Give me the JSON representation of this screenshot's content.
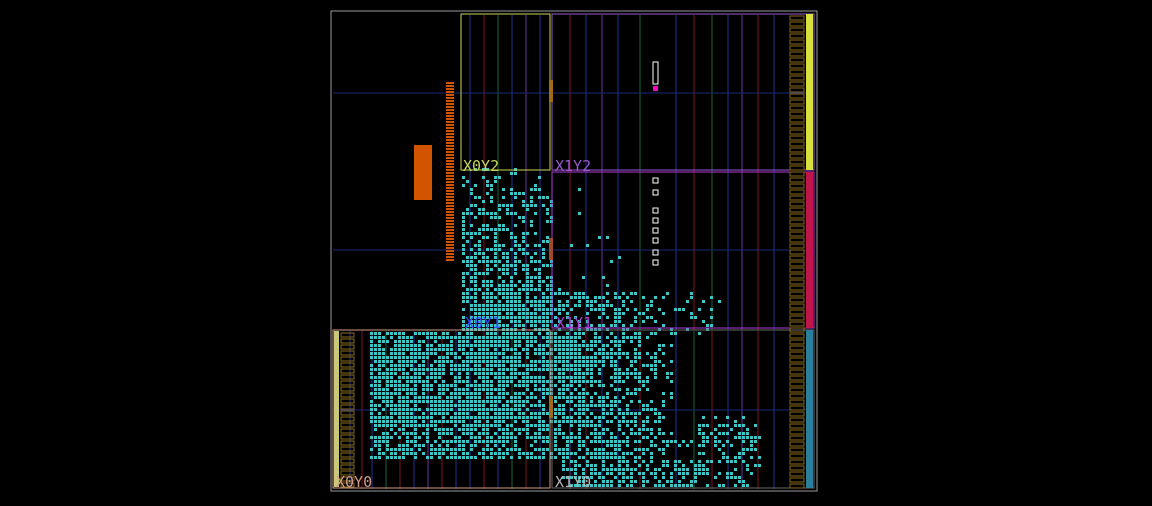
{
  "view": {
    "name": "fpga-device-floorplan"
  },
  "clock_regions": [
    {
      "id": "X0Y2",
      "label": "X0Y2",
      "color": "#c8d65a"
    },
    {
      "id": "X1Y2",
      "label": "X1Y2",
      "color": "#9b59d0"
    },
    {
      "id": "X0Y1",
      "label": "X0Y1",
      "color": "#3a4cff"
    },
    {
      "id": "X1Y1",
      "label": "X1Y1",
      "color": "#b03ad6"
    },
    {
      "id": "X0Y0",
      "label": "X0Y0",
      "color": "#d29a86"
    },
    {
      "id": "X1Y0",
      "label": "X1Y0",
      "color": "#b8b8b8"
    }
  ],
  "colors": {
    "background": "#000000",
    "device_outline": "#9a9a9a",
    "placed_cells": "#3cc6c6",
    "io_bank_block": "#d35400",
    "column_dark_red": "#6b1020",
    "column_green": "#14532d",
    "column_purple": "#5a2d82",
    "grid_blue": "#1a2a7a",
    "io_column_top": "#d8e040",
    "io_column_mid": "#c0154a",
    "io_column_bottom": "#2a7f9e",
    "io_tile_gold": "#8a6a1c",
    "marker_magenta": "#ff00c8",
    "marker_white": "#ffffff"
  }
}
